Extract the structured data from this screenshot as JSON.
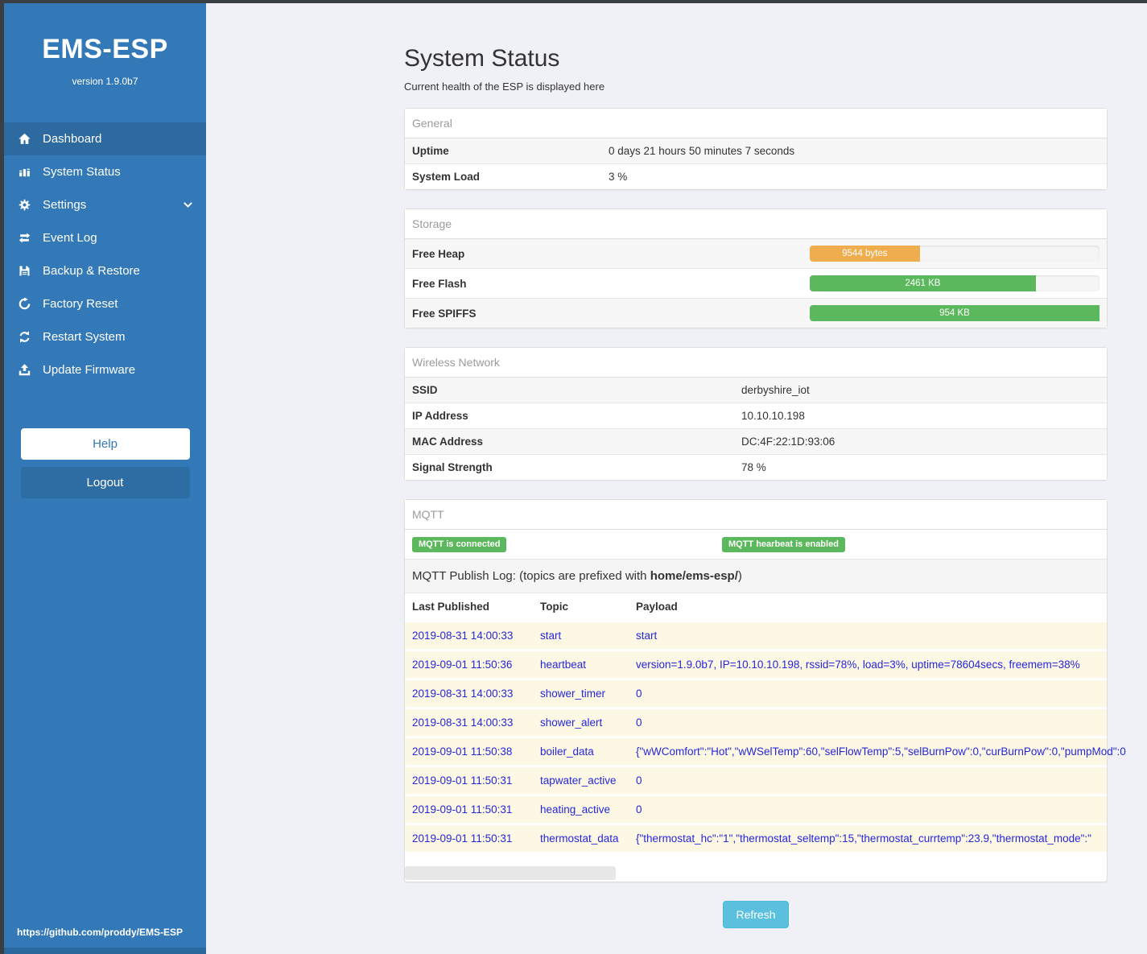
{
  "app": {
    "title": "EMS-ESP",
    "version": "version 1.9.0b7",
    "footer_url": "https://github.com/proddy/EMS-ESP"
  },
  "sidebar": {
    "items": [
      {
        "label": "Dashboard",
        "icon": "home-icon",
        "active": true
      },
      {
        "label": "System Status",
        "icon": "chart-icon",
        "active": false
      },
      {
        "label": "Settings",
        "icon": "gear-icon",
        "active": false,
        "has_chevron": true
      },
      {
        "label": "Event Log",
        "icon": "exchange-icon",
        "active": false
      },
      {
        "label": "Backup & Restore",
        "icon": "save-icon",
        "active": false
      },
      {
        "label": "Factory Reset",
        "icon": "rotate-icon",
        "active": false
      },
      {
        "label": "Restart System",
        "icon": "refresh-icon",
        "active": false
      },
      {
        "label": "Update Firmware",
        "icon": "upload-icon",
        "active": false
      }
    ],
    "help_label": "Help",
    "logout_label": "Logout"
  },
  "page": {
    "title": "System Status",
    "subtitle": "Current health of the ESP is displayed here"
  },
  "general": {
    "header": "General",
    "rows": [
      {
        "label": "Uptime",
        "value": "0 days 21 hours 50 minutes 7 seconds"
      },
      {
        "label": "System Load",
        "value": "3 %"
      }
    ]
  },
  "storage": {
    "header": "Storage",
    "rows": [
      {
        "label": "Free Heap",
        "bar_label": "9544 bytes",
        "percent": 38,
        "color": "#f0ad4e"
      },
      {
        "label": "Free Flash",
        "bar_label": "2461 KB",
        "percent": 78,
        "color": "#5cb85c"
      },
      {
        "label": "Free SPIFFS",
        "bar_label": "954 KB",
        "percent": 100,
        "color": "#5cb85c"
      }
    ]
  },
  "wireless": {
    "header": "Wireless Network",
    "rows": [
      {
        "label": "SSID",
        "value": "derbyshire_iot"
      },
      {
        "label": "IP Address",
        "value": "10.10.10.198"
      },
      {
        "label": "MAC Address",
        "value": "DC:4F:22:1D:93:06"
      },
      {
        "label": "Signal Strength",
        "value": "78 %"
      }
    ]
  },
  "mqtt": {
    "header": "MQTT",
    "badges": [
      "MQTT is connected",
      "MQTT hearbeat is enabled"
    ],
    "publish_log": {
      "prefix": "MQTT Publish Log: (topics are prefixed with ",
      "bold": "home/ems-esp/",
      "suffix": ")"
    },
    "columns": [
      "Last Published",
      "Topic",
      "Payload"
    ],
    "rows": [
      {
        "time": "2019-08-31 14:00:33",
        "topic": "start",
        "payload": "start"
      },
      {
        "time": "2019-09-01 11:50:36",
        "topic": "heartbeat",
        "payload": "version=1.9.0b7, IP=10.10.10.198, rssid=78%, load=3%, uptime=78604secs, freemem=38%"
      },
      {
        "time": "2019-08-31 14:00:33",
        "topic": "shower_timer",
        "payload": "0"
      },
      {
        "time": "2019-08-31 14:00:33",
        "topic": "shower_alert",
        "payload": "0"
      },
      {
        "time": "2019-09-01 11:50:38",
        "topic": "boiler_data",
        "payload": "{\"wWComfort\":\"Hot\",\"wWSelTemp\":60,\"selFlowTemp\":5,\"selBurnPow\":0,\"curBurnPow\":0,\"pumpMod\":0"
      },
      {
        "time": "2019-09-01 11:50:31",
        "topic": "tapwater_active",
        "payload": "0"
      },
      {
        "time": "2019-09-01 11:50:31",
        "topic": "heating_active",
        "payload": "0"
      },
      {
        "time": "2019-09-01 11:50:31",
        "topic": "thermostat_data",
        "payload": "{\"thermostat_hc\":\"1\",\"thermostat_seltemp\":15,\"thermostat_currtemp\":23.9,\"thermostat_mode\":\""
      }
    ]
  },
  "refresh_label": "Refresh",
  "colors": {
    "sidebar_blue": "#3379b7",
    "success_green": "#5cb85c",
    "warning_orange": "#f0ad4e",
    "info_blue": "#5bc0de",
    "log_text_blue": "#2626dd"
  }
}
